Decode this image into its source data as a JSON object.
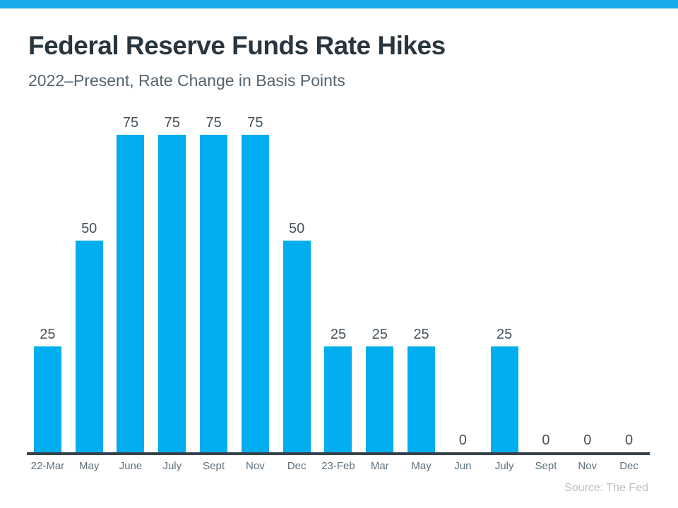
{
  "banner": {
    "color": "#18ACEC"
  },
  "header": {
    "title": "Federal Reserve Funds Rate Hikes",
    "subtitle": "2022–Present, Rate Change in Basis Points"
  },
  "chart_data": {
    "type": "bar",
    "title": "Federal Reserve Funds Rate Hikes",
    "subtitle": "2022–Present, Rate Change in Basis Points",
    "categories": [
      "22-Mar",
      "May",
      "June",
      "July",
      "Sept",
      "Nov",
      "Dec",
      "23-Feb",
      "Mar",
      "May",
      "Jun",
      "July",
      "Sept",
      "Nov",
      "Dec"
    ],
    "values": [
      25,
      50,
      75,
      75,
      75,
      75,
      50,
      25,
      25,
      25,
      0,
      25,
      0,
      0,
      0
    ],
    "ylim": [
      0,
      75
    ],
    "bar_color": "#00ADEE",
    "value_labels_shown": true,
    "gridlines": false,
    "legend_position": "none",
    "axis_color": "#37434C"
  },
  "footer": {
    "source": "Source: The Fed"
  },
  "colors": {
    "accent_cyan": "#00ADEE",
    "banner_cyan": "#18ACEC",
    "title_text": "#29363F",
    "subtitle_text": "#55636D",
    "value_label_text": "#44525C",
    "tick_label_text": "#5E707C",
    "axis_line": "#37434C",
    "source_text": "#B7C0C7"
  }
}
